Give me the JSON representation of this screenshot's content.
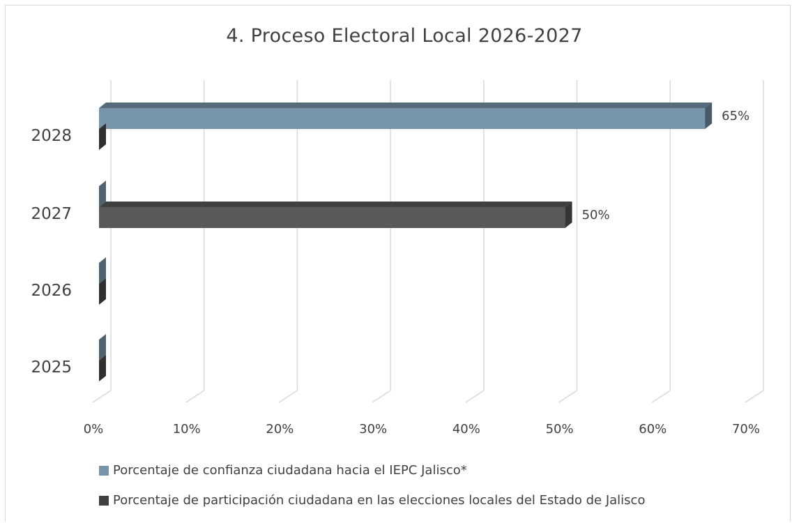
{
  "chart_data": {
    "type": "bar",
    "orientation": "horizontal",
    "style": "3d",
    "title": "4. Proceso Electoral Local 2026-2027",
    "categories": [
      "2025",
      "2026",
      "2027",
      "2028"
    ],
    "series": [
      {
        "name": "Porcentaje de confianza ciudadana hacia el IEPC Jalisco*",
        "color": "#7896ab",
        "values": [
          0,
          0,
          0,
          65
        ],
        "labels": [
          "",
          "",
          "",
          "65%"
        ]
      },
      {
        "name": "Porcentaje de participación ciudadana en las elecciones locales del Estado de Jalisco",
        "color": "#595959",
        "values": [
          0,
          0,
          50,
          0
        ],
        "labels": [
          "",
          "",
          "50%",
          ""
        ]
      }
    ],
    "x_ticks": [
      "0%",
      "10%",
      "20%",
      "30%",
      "40%",
      "50%",
      "60%",
      "70%"
    ],
    "xlim": [
      0,
      70
    ],
    "grid": true,
    "legend": "bottom-left"
  }
}
